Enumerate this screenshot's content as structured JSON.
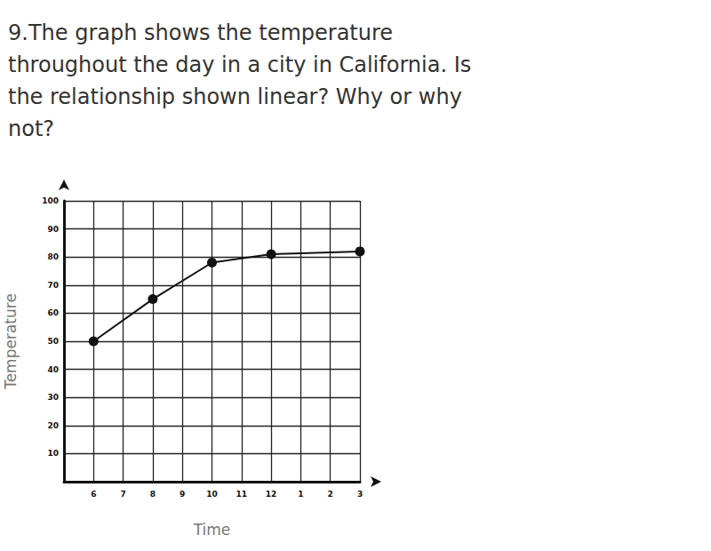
{
  "chart_data": {
    "type": "line",
    "title": "9.The graph shows the temperature\nthroughout the day in a city in California. Is\nthe relationship shown linear? Why or why\nnot?",
    "x_label": "Time",
    "y_label": "Temperature",
    "categories": [
      null,
      "6",
      "7",
      "8",
      "9",
      "10",
      "11",
      "12",
      "1",
      "2",
      "3"
    ],
    "values": [
      null,
      50,
      null,
      65,
      null,
      78,
      null,
      81,
      null,
      null,
      82
    ],
    "color": "#111111",
    "marker": "circle",
    "ylim": [
      0,
      100
    ],
    "yticks": [
      10,
      20,
      30,
      40,
      50,
      60,
      70,
      80,
      90,
      100
    ],
    "grid": true
  }
}
